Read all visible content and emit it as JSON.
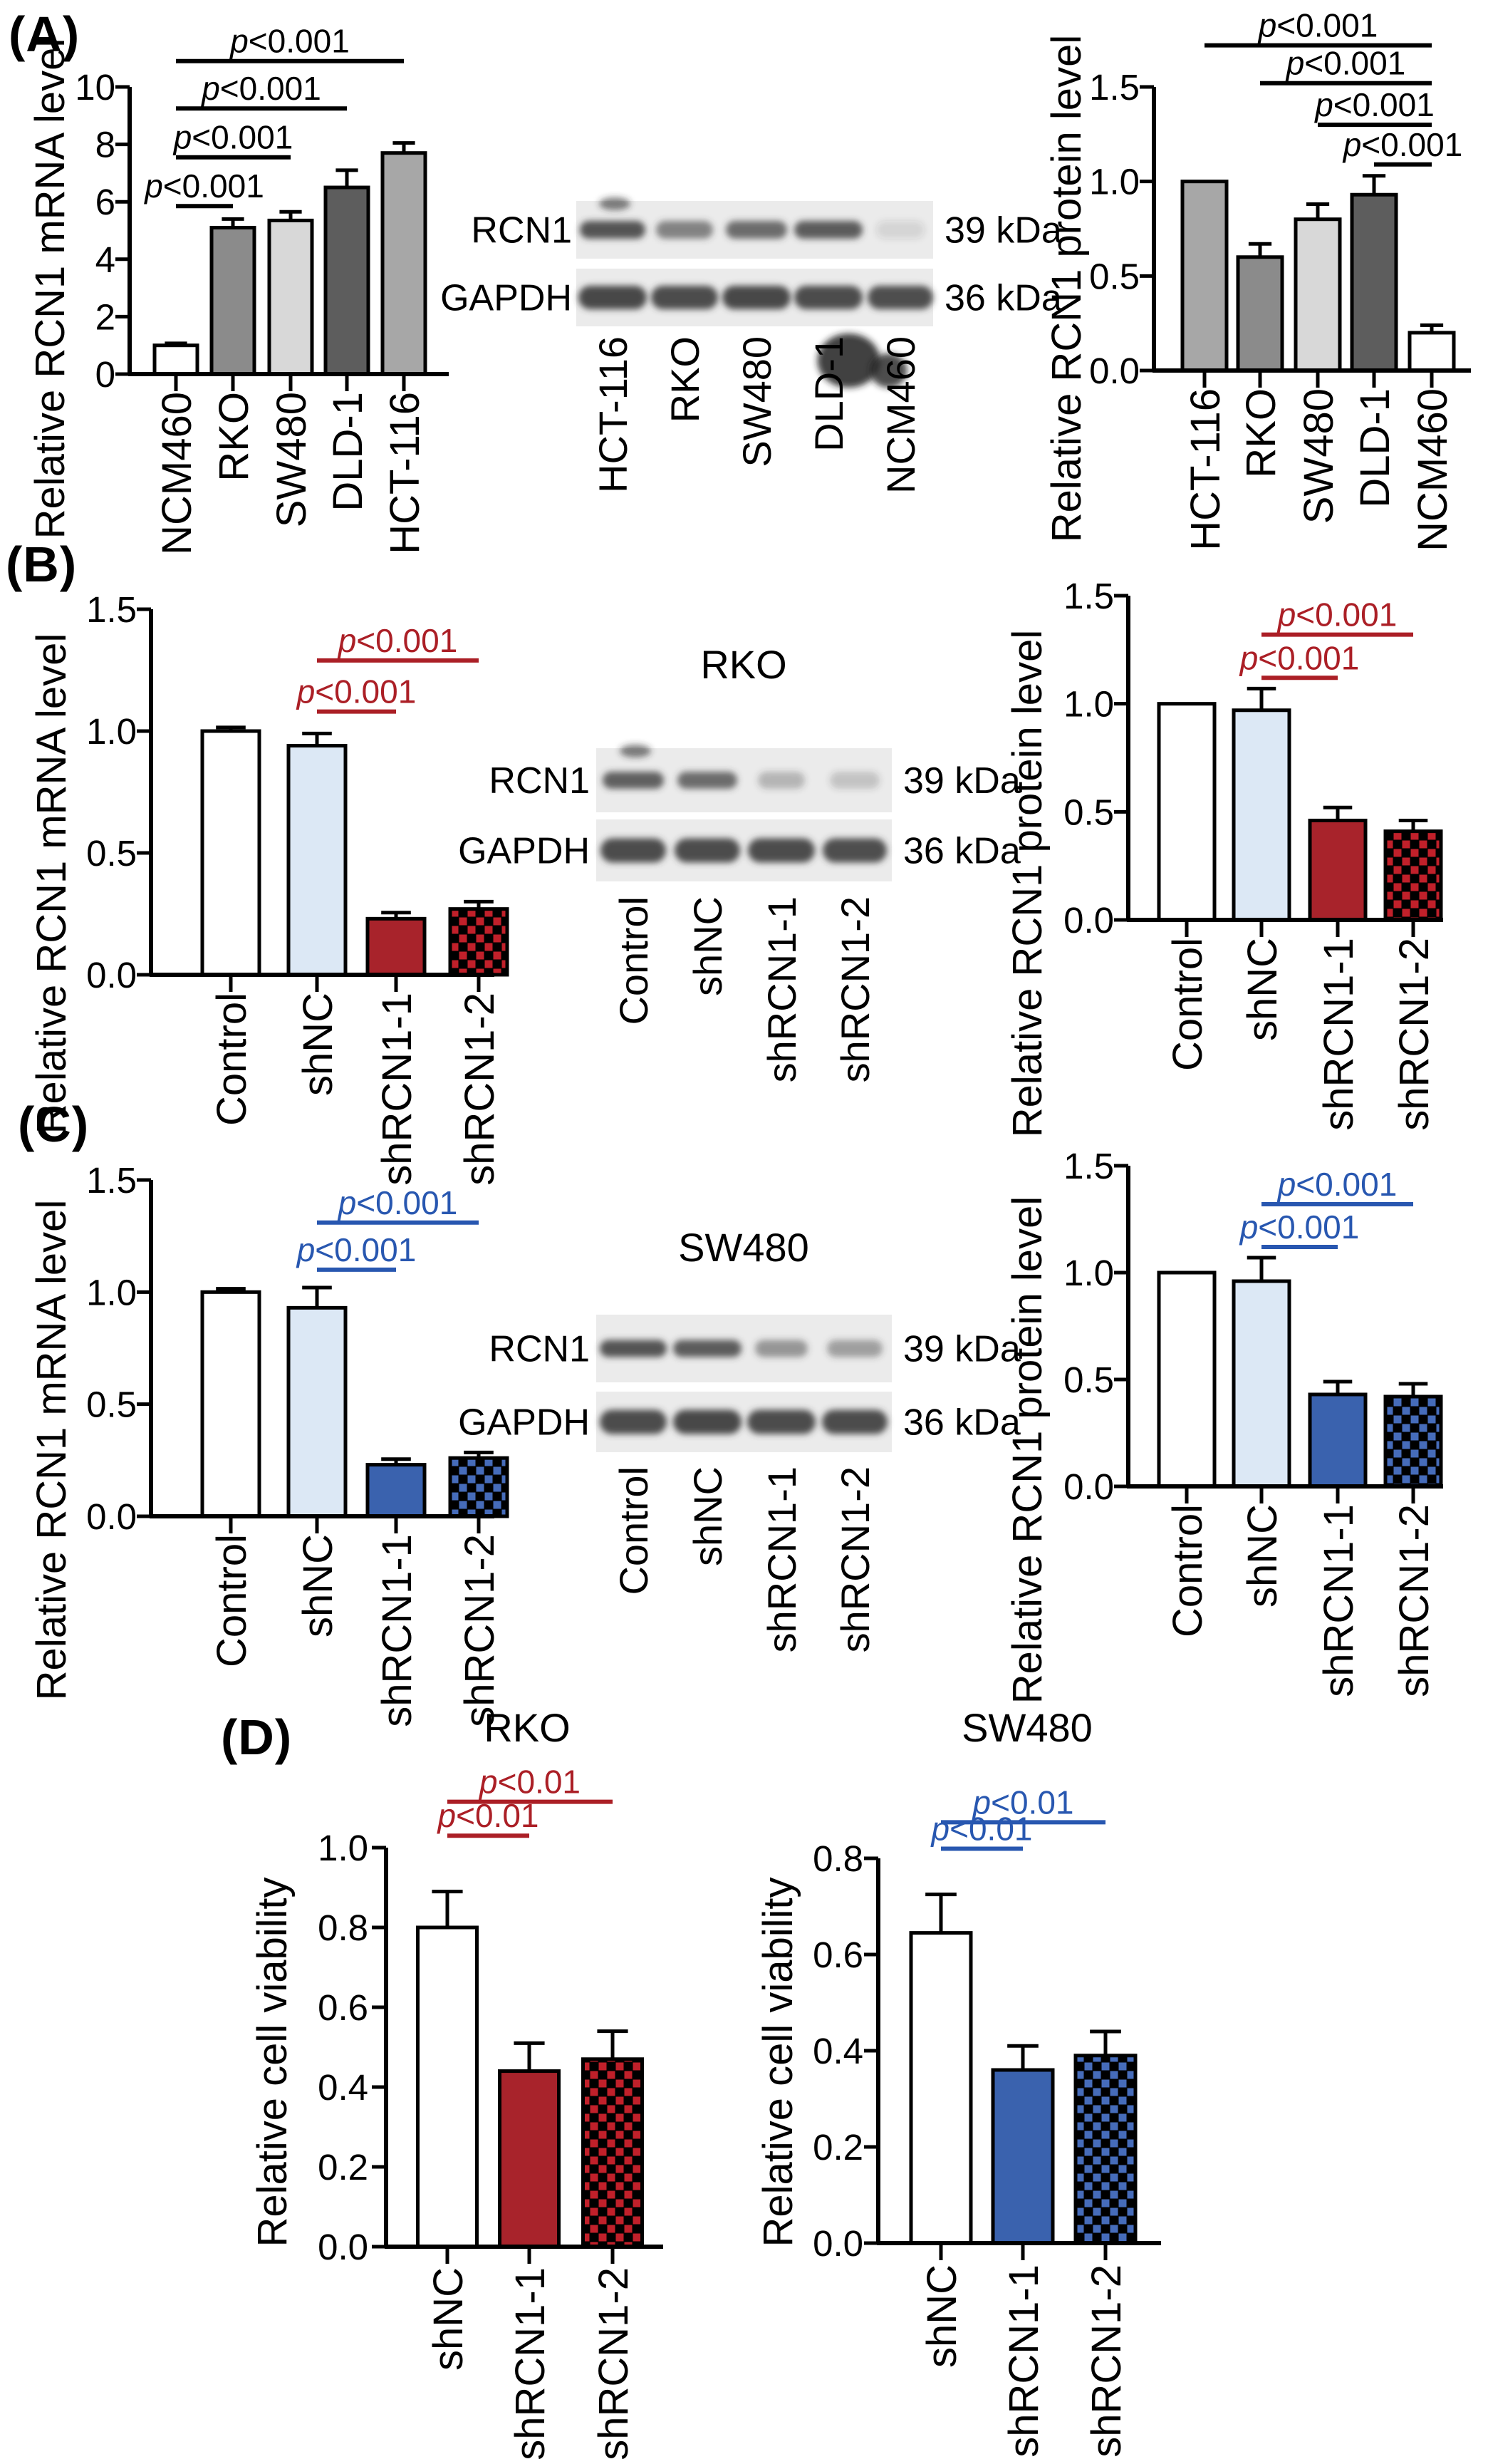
{
  "panels": [
    {
      "id": "A",
      "label": "(A)"
    },
    {
      "id": "B",
      "label": "(B)"
    },
    {
      "id": "C",
      "label": "(C)"
    },
    {
      "id": "D",
      "label": "(D)"
    }
  ],
  "colors": {
    "black": "#000000",
    "white": "#ffffff",
    "gray_hct116": "#a7a7a7",
    "gray_rko": "#8b8b8b",
    "gray_sw480": "#d8d8d8",
    "gray_dld1": "#5d5d5d",
    "light_blue": "#dce8f5",
    "solid_red": "#a8232b",
    "checker_red": "#c1202a",
    "solid_blue": "#3a62ae",
    "checker_blue": "#466cba",
    "sig_red": "#ab1f26",
    "sig_blue": "#2857b0",
    "blot_bg": "#ebebeb",
    "band": "#3a3a3a"
  },
  "chart_data": [
    {
      "id": "a_mrna",
      "panel": "A",
      "type": "bar",
      "title": "",
      "ylabel": "Relative RCN1 mRNA level",
      "ylim": [
        0,
        10
      ],
      "yticks": [
        0,
        2,
        4,
        6,
        8,
        10
      ],
      "ytick_labels": [
        "0",
        "2",
        "4",
        "6",
        "8",
        "10"
      ],
      "categories": [
        "NCM460",
        "RKO",
        "SW480",
        "DLD-1",
        "HCT-116"
      ],
      "values": [
        1.0,
        5.1,
        5.35,
        6.5,
        7.7
      ],
      "errors": [
        0.07,
        0.3,
        0.3,
        0.6,
        0.35
      ],
      "bar_styles": [
        "white",
        "gray_rko",
        "gray_sw480",
        "gray_dld1",
        "gray_hct116"
      ],
      "sig_color": "black",
      "significance": [
        {
          "from": "NCM460",
          "to": "RKO",
          "label": "p<0.001",
          "y": 5.85
        },
        {
          "from": "NCM460",
          "to": "SW480",
          "label": "p<0.001",
          "y": 7.55
        },
        {
          "from": "NCM460",
          "to": "DLD-1",
          "label": "p<0.001",
          "y": 9.25
        },
        {
          "from": "NCM460",
          "to": "HCT-116",
          "label": "p<0.001",
          "y": 10.9
        }
      ]
    },
    {
      "id": "a_protein",
      "panel": "A",
      "type": "bar",
      "title": "",
      "ylabel": "Relative RCN1 protein level",
      "ylim": [
        0,
        1.5
      ],
      "yticks": [
        0,
        0.5,
        1.0,
        1.5
      ],
      "ytick_labels": [
        "0.0",
        "0.5",
        "1.0",
        "1.5"
      ],
      "categories": [
        "HCT-116",
        "RKO",
        "SW480",
        "DLD-1",
        "NCM460"
      ],
      "values": [
        1.0,
        0.6,
        0.8,
        0.93,
        0.2
      ],
      "errors": [
        0,
        0.07,
        0.08,
        0.1,
        0.04
      ],
      "bar_styles": [
        "gray_hct116",
        "gray_rko",
        "gray_sw480",
        "gray_dld1",
        "white"
      ],
      "sig_color": "black",
      "significance": [
        {
          "from": "DLD-1",
          "to": "NCM460",
          "label": "p<0.001",
          "y": 1.09
        },
        {
          "from": "SW480",
          "to": "NCM460",
          "label": "p<0.001",
          "y": 1.3
        },
        {
          "from": "RKO",
          "to": "NCM460",
          "label": "p<0.001",
          "y": 1.52
        },
        {
          "from": "HCT-116",
          "to": "NCM460",
          "label": "p<0.001",
          "y": 1.72
        }
      ]
    },
    {
      "id": "b_mrna",
      "panel": "B",
      "type": "bar",
      "title": "",
      "ylabel": "Relative RCN1 mRNA level",
      "ylim": [
        0,
        1.5
      ],
      "yticks": [
        0,
        0.5,
        1.0,
        1.5
      ],
      "ytick_labels": [
        "0.0",
        "0.5",
        "1.0",
        "1.5"
      ],
      "categories": [
        "Control",
        "shNC",
        "shRCN1-1",
        "shRCN1-2"
      ],
      "values": [
        1.0,
        0.94,
        0.23,
        0.27
      ],
      "errors": [
        0.015,
        0.05,
        0.025,
        0.03
      ],
      "bar_styles": [
        "white",
        "light_blue",
        "solid_red",
        "checker_red"
      ],
      "sig_color": "sig_red",
      "significance": [
        {
          "from": "shNC",
          "to": "shRCN1-1",
          "label": "p<0.001",
          "y": 1.08
        },
        {
          "from": "shNC",
          "to": "shRCN1-2",
          "label": "p<0.001",
          "y": 1.29
        }
      ]
    },
    {
      "id": "b_protein",
      "panel": "B",
      "type": "bar",
      "title": "",
      "ylabel": "Relative RCN1 protein level",
      "ylim": [
        0,
        1.5
      ],
      "yticks": [
        0,
        0.5,
        1.0,
        1.5
      ],
      "ytick_labels": [
        "0.0",
        "0.5",
        "1.0",
        "1.5"
      ],
      "categories": [
        "Control",
        "shNC",
        "shRCN1-1",
        "shRCN1-2"
      ],
      "values": [
        1.0,
        0.97,
        0.46,
        0.41
      ],
      "errors": [
        0,
        0.1,
        0.06,
        0.05
      ],
      "bar_styles": [
        "white",
        "light_blue",
        "solid_red",
        "checker_red"
      ],
      "sig_color": "sig_red",
      "significance": [
        {
          "from": "shNC",
          "to": "shRCN1-1",
          "label": "p<0.001",
          "y": 1.12
        },
        {
          "from": "shNC",
          "to": "shRCN1-2",
          "label": "p<0.001",
          "y": 1.32
        }
      ]
    },
    {
      "id": "c_mrna",
      "panel": "C",
      "type": "bar",
      "title": "",
      "ylabel": "Relative RCN1 mRNA level",
      "ylim": [
        0,
        1.5
      ],
      "yticks": [
        0,
        0.5,
        1.0,
        1.5
      ],
      "ytick_labels": [
        "0.0",
        "0.5",
        "1.0",
        "1.5"
      ],
      "categories": [
        "Control",
        "shNC",
        "shRCN1-1",
        "shRCN1-2"
      ],
      "values": [
        1.0,
        0.93,
        0.23,
        0.26
      ],
      "errors": [
        0.015,
        0.09,
        0.025,
        0.025
      ],
      "bar_styles": [
        "white",
        "light_blue",
        "solid_blue",
        "checker_blue"
      ],
      "sig_color": "sig_blue",
      "significance": [
        {
          "from": "shNC",
          "to": "shRCN1-1",
          "label": "p<0.001",
          "y": 1.1
        },
        {
          "from": "shNC",
          "to": "shRCN1-2",
          "label": "p<0.001",
          "y": 1.31
        }
      ]
    },
    {
      "id": "c_protein",
      "panel": "C",
      "type": "bar",
      "title": "",
      "ylabel": "Relative RCN1 protein level",
      "ylim": [
        0,
        1.5
      ],
      "yticks": [
        0,
        0.5,
        1.0,
        1.5
      ],
      "ytick_labels": [
        "0.0",
        "0.5",
        "1.0",
        "1.5"
      ],
      "categories": [
        "Control",
        "shNC",
        "shRCN1-1",
        "shRCN1-2"
      ],
      "values": [
        1.0,
        0.96,
        0.43,
        0.42
      ],
      "errors": [
        0,
        0.11,
        0.06,
        0.06
      ],
      "bar_styles": [
        "white",
        "light_blue",
        "solid_blue",
        "checker_blue"
      ],
      "sig_color": "sig_blue",
      "significance": [
        {
          "from": "shNC",
          "to": "shRCN1-1",
          "label": "p<0.001",
          "y": 1.12
        },
        {
          "from": "shNC",
          "to": "shRCN1-2",
          "label": "p<0.001",
          "y": 1.32
        }
      ]
    },
    {
      "id": "d_rko",
      "panel": "D",
      "type": "bar",
      "title": "RKO",
      "ylabel": "Relative cell viability",
      "ylim": [
        0,
        1.0
      ],
      "yticks": [
        0,
        0.2,
        0.4,
        0.6,
        0.8,
        1.0
      ],
      "ytick_labels": [
        "0.0",
        "0.2",
        "0.4",
        "0.6",
        "0.8",
        "1.0"
      ],
      "categories": [
        "shNC",
        "shRCN1-1",
        "shRCN1-2"
      ],
      "values": [
        0.8,
        0.44,
        0.47
      ],
      "errors": [
        0.09,
        0.07,
        0.07
      ],
      "bar_styles": [
        "white",
        "solid_red",
        "checker_red"
      ],
      "sig_color": "sig_red",
      "significance": [
        {
          "from": "shNC",
          "to": "shRCN1-1",
          "label": "p<0.01",
          "y": 1.03
        },
        {
          "from": "shNC",
          "to": "shRCN1-2",
          "label": "p<0.01",
          "y": 1.115
        }
      ]
    },
    {
      "id": "d_sw480",
      "panel": "D",
      "type": "bar",
      "title": "SW480",
      "ylabel": "Relative cell viability",
      "ylim": [
        0,
        0.8
      ],
      "yticks": [
        0,
        0.2,
        0.4,
        0.6,
        0.8
      ],
      "ytick_labels": [
        "0.0",
        "0.2",
        "0.4",
        "0.6",
        "0.8"
      ],
      "categories": [
        "shNC",
        "shRCN1-1",
        "shRCN1-2"
      ],
      "values": [
        0.645,
        0.36,
        0.39
      ],
      "errors": [
        0.08,
        0.05,
        0.05
      ],
      "bar_styles": [
        "white",
        "solid_blue",
        "checker_blue"
      ],
      "sig_color": "sig_blue",
      "significance": [
        {
          "from": "shNC",
          "to": "shRCN1-1",
          "label": "p<0.01",
          "y": 0.82
        },
        {
          "from": "shNC",
          "to": "shRCN1-2",
          "label": "p<0.01",
          "y": 0.875
        }
      ]
    }
  ],
  "blots": [
    {
      "id": "blot_a",
      "panel": "A",
      "title": "",
      "lanes": [
        "HCT-116",
        "RKO",
        "SW480",
        "DLD-1",
        "NCM460"
      ],
      "rows": [
        {
          "protein": "RCN1",
          "size_label": "39 kDa",
          "band_intensities": [
            0.85,
            0.6,
            0.72,
            0.8,
            0.12
          ],
          "band_widths": [
            92,
            80,
            86,
            96,
            68
          ]
        },
        {
          "protein": "GAPDH",
          "size_label": "36 kDa",
          "band_intensities": [
            0.92,
            0.9,
            0.92,
            0.9,
            0.88
          ],
          "band_widths": [
            96,
            94,
            96,
            96,
            92
          ]
        }
      ],
      "artifacts": {
        "rcn1_top_notch": true,
        "gapdh_smudge": true
      }
    },
    {
      "id": "blot_b",
      "panel": "B",
      "title": "RKO",
      "lanes": [
        "Control",
        "shNC",
        "shRCN1-1",
        "shRCN1-2"
      ],
      "rows": [
        {
          "protein": "RCN1",
          "size_label": "39 kDa",
          "band_intensities": [
            0.78,
            0.72,
            0.3,
            0.22
          ],
          "band_widths": [
            86,
            84,
            66,
            70
          ]
        },
        {
          "protein": "GAPDH",
          "size_label": "36 kDa",
          "band_intensities": [
            0.9,
            0.9,
            0.9,
            0.88
          ],
          "band_widths": [
            92,
            92,
            94,
            90
          ]
        }
      ],
      "artifacts": {
        "rcn1_top_notch": true,
        "gapdh_smudge": false
      }
    },
    {
      "id": "blot_c",
      "panel": "C",
      "title": "SW480",
      "lanes": [
        "Control",
        "shNC",
        "shRCN1-1",
        "shRCN1-2"
      ],
      "rows": [
        {
          "protein": "RCN1",
          "size_label": "39 kDa",
          "band_intensities": [
            0.85,
            0.8,
            0.48,
            0.42
          ],
          "band_widths": [
            94,
            96,
            74,
            78
          ]
        },
        {
          "protein": "GAPDH",
          "size_label": "36 kDa",
          "band_intensities": [
            0.9,
            0.92,
            0.9,
            0.9
          ],
          "band_widths": [
            94,
            96,
            96,
            92
          ]
        }
      ],
      "artifacts": {
        "rcn1_top_notch": false,
        "gapdh_smudge": false
      }
    }
  ]
}
